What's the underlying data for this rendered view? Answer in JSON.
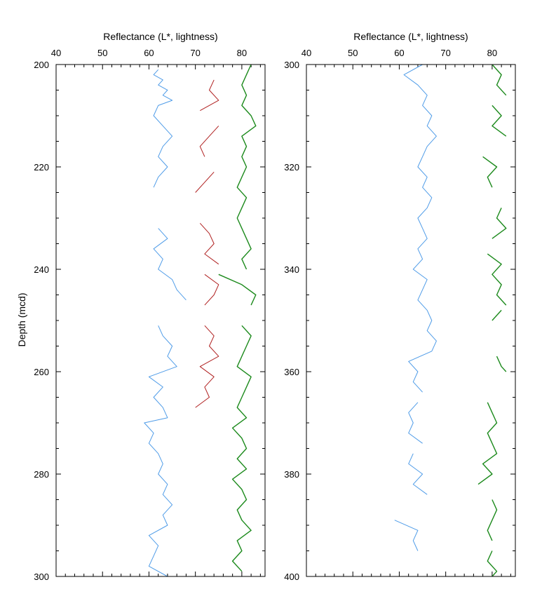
{
  "chart_data": [
    {
      "type": "line",
      "title": "",
      "xlabel": "Reflectance (L*, lightness)",
      "ylabel": "Depth (mcd)",
      "xlim": [
        40,
        85
      ],
      "ylim": [
        200,
        300
      ],
      "y_inverted": true,
      "x_ticks": [
        40,
        50,
        60,
        70,
        80
      ],
      "y_ticks": [
        200,
        220,
        240,
        260,
        280,
        300
      ],
      "grid": false,
      "series": [
        {
          "color": "#4f9ce8",
          "segments": [
            {
              "depth": [
                201,
                202,
                203,
                204,
                205,
                206,
                207,
                208,
                210,
                212,
                214,
                216,
                218,
                220,
                222,
                224
              ],
              "values": [
                62,
                61,
                63,
                62,
                64,
                63,
                65,
                62,
                61,
                63,
                65,
                63,
                62,
                64,
                62,
                61
              ]
            },
            {
              "depth": [
                232,
                234,
                236,
                238,
                240,
                242,
                244,
                246
              ],
              "values": [
                62,
                64,
                61,
                63,
                62,
                65,
                66,
                68
              ]
            },
            {
              "depth": [
                251,
                253,
                255,
                257,
                259,
                261,
                263,
                265,
                267,
                269,
                270,
                272,
                274,
                276,
                278,
                280,
                282,
                284,
                286,
                288,
                290,
                292,
                294,
                296,
                298,
                300
              ],
              "values": [
                62,
                63,
                65,
                64,
                66,
                60,
                63,
                61,
                63,
                64,
                59,
                61,
                60,
                62,
                63,
                62,
                64,
                63,
                65,
                63,
                64,
                60,
                62,
                61,
                60,
                64
              ]
            }
          ]
        },
        {
          "color": "#b02020",
          "segments": [
            {
              "depth": [
                203,
                205,
                207,
                209
              ],
              "values": [
                74,
                73,
                75,
                71
              ]
            },
            {
              "depth": [
                212,
                214,
                216,
                218
              ],
              "values": [
                75,
                73,
                71,
                72
              ]
            },
            {
              "depth": [
                221,
                223,
                225
              ],
              "values": [
                74,
                72,
                70
              ]
            },
            {
              "depth": [
                231,
                233,
                235,
                237,
                239
              ],
              "values": [
                71,
                73,
                74,
                72,
                75
              ]
            },
            {
              "depth": [
                241,
                243,
                245,
                247
              ],
              "values": [
                72,
                75,
                74,
                72
              ]
            },
            {
              "depth": [
                251,
                253,
                255,
                257,
                259,
                261,
                263,
                265,
                267
              ],
              "values": [
                72,
                74,
                73,
                75,
                71,
                74,
                72,
                73,
                70
              ]
            }
          ]
        },
        {
          "color": "#1c8a1c",
          "segments": [
            {
              "depth": [
                200,
                202,
                204,
                206,
                208,
                210,
                212,
                214,
                216,
                218,
                220,
                222,
                224,
                226,
                228,
                230,
                232,
                234,
                236,
                238,
                240
              ],
              "values": [
                82,
                81,
                80,
                81,
                80,
                82,
                83,
                80,
                81,
                80,
                81,
                80,
                79,
                81,
                80,
                79,
                80,
                81,
                82,
                80,
                81
              ]
            },
            {
              "depth": [
                241,
                243,
                245,
                247
              ],
              "values": [
                75,
                80,
                83,
                82
              ]
            },
            {
              "depth": [
                251,
                253,
                255,
                257,
                259,
                261,
                263,
                265,
                267,
                269,
                271,
                273,
                275,
                277,
                279,
                281,
                283,
                285,
                287,
                289,
                291,
                293,
                295,
                297,
                299
              ],
              "values": [
                80,
                82,
                81,
                80,
                79,
                82,
                81,
                80,
                79,
                81,
                78,
                80,
                81,
                79,
                81,
                78,
                80,
                81,
                79,
                80,
                82,
                79,
                80,
                78,
                80
              ]
            }
          ]
        }
      ]
    },
    {
      "type": "line",
      "title": "",
      "xlabel": "Reflectance (L*, lightness)",
      "ylabel": "",
      "xlim": [
        40,
        85
      ],
      "ylim": [
        300,
        400
      ],
      "y_inverted": true,
      "x_ticks": [
        40,
        50,
        60,
        70,
        80
      ],
      "y_ticks": [
        300,
        320,
        340,
        360,
        380,
        400
      ],
      "grid": false,
      "series": [
        {
          "color": "#4f9ce8",
          "segments": [
            {
              "depth": [
                300,
                302,
                304,
                306,
                308,
                310,
                312,
                314,
                316,
                318,
                320,
                322,
                324,
                326,
                328,
                330,
                332,
                334,
                336,
                338,
                340,
                342,
                344,
                346,
                348,
                350,
                352,
                354,
                356,
                358,
                360,
                362,
                364
              ],
              "values": [
                65,
                61,
                64,
                66,
                65,
                67,
                66,
                68,
                66,
                65,
                64,
                66,
                65,
                67,
                66,
                64,
                65,
                66,
                64,
                65,
                63,
                66,
                65,
                64,
                66,
                67,
                66,
                68,
                67,
                62,
                64,
                63,
                65
              ]
            },
            {
              "depth": [
                366,
                368,
                370,
                372,
                374
              ],
              "values": [
                64,
                62,
                63,
                62,
                65
              ]
            },
            {
              "depth": [
                376,
                378,
                380,
                382,
                384
              ],
              "values": [
                63,
                62,
                65,
                63,
                66
              ]
            },
            {
              "depth": [
                389,
                391,
                393,
                395
              ],
              "values": [
                59,
                64,
                63,
                64
              ]
            }
          ]
        },
        {
          "color": "#1c8a1c",
          "segments": [
            {
              "depth": [
                300,
                302,
                304,
                306
              ],
              "values": [
                80,
                82,
                81,
                83
              ]
            },
            {
              "depth": [
                308,
                310,
                312,
                314
              ],
              "values": [
                80,
                82,
                80,
                83
              ]
            },
            {
              "depth": [
                318,
                320,
                322,
                324
              ],
              "values": [
                78,
                81,
                79,
                80
              ]
            },
            {
              "depth": [
                328,
                330,
                332,
                334
              ],
              "values": [
                82,
                81,
                83,
                80
              ]
            },
            {
              "depth": [
                337,
                339,
                341,
                343,
                345,
                347
              ],
              "values": [
                79,
                82,
                80,
                82,
                81,
                83
              ]
            },
            {
              "depth": [
                348,
                350
              ],
              "values": [
                82,
                80
              ]
            },
            {
              "depth": [
                357,
                359,
                360
              ],
              "values": [
                81,
                82,
                83
              ]
            },
            {
              "depth": [
                366,
                368,
                370,
                372,
                374,
                376,
                378,
                380,
                382
              ],
              "values": [
                79,
                80,
                81,
                79,
                80,
                81,
                78,
                80,
                77
              ]
            },
            {
              "depth": [
                385,
                387,
                389,
                391,
                393
              ],
              "values": [
                80,
                81,
                80,
                79,
                80
              ]
            },
            {
              "depth": [
                395,
                397,
                399,
                400
              ],
              "values": [
                80,
                79,
                81,
                80
              ]
            }
          ]
        }
      ]
    }
  ]
}
